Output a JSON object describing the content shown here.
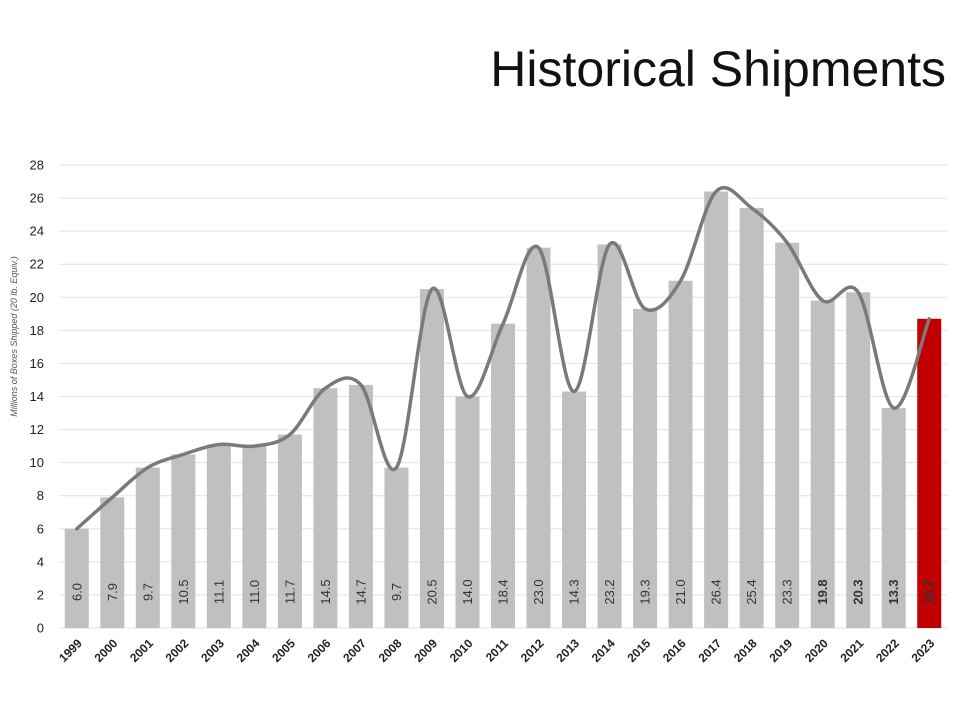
{
  "slide": {
    "title": "Historical Shipments"
  },
  "chart_data": {
    "type": "bar",
    "title": "",
    "xlabel": "",
    "ylabel": "Millions of Boxes Shipped (20 lb. Equiv.)",
    "ylim": [
      0,
      28
    ],
    "yticks": [
      0,
      2,
      4,
      6,
      8,
      10,
      12,
      14,
      16,
      18,
      20,
      22,
      24,
      26,
      28
    ],
    "grid": true,
    "legend": "none",
    "categories": [
      "1999",
      "2000",
      "2001",
      "2002",
      "2003",
      "2004",
      "2005",
      "2006",
      "2007",
      "2008",
      "2009",
      "2010",
      "2011",
      "2012",
      "2013",
      "2014",
      "2015",
      "2016",
      "2017",
      "2018",
      "2019",
      "2020",
      "2021",
      "2022",
      "2023"
    ],
    "series": [
      {
        "values": [
          6.0,
          7.9,
          9.7,
          10.5,
          11.1,
          11.0,
          11.7,
          14.5,
          14.7,
          9.7,
          20.5,
          14.0,
          18.4,
          23.0,
          14.3,
          23.2,
          19.3,
          21.0,
          26.4,
          25.4,
          23.3,
          19.8,
          20.3,
          13.3,
          18.7
        ]
      }
    ],
    "data_labels": [
      "6.0",
      "7.9",
      "9.7",
      "10.5",
      "11.1",
      "11.0",
      "11.7",
      "14.5",
      "14.7",
      "9.7",
      "20.5",
      "14.0",
      "18.4",
      "23.0",
      "14.3",
      "23.2",
      "19.3",
      "21.0",
      "26.4",
      "25.4",
      "23.3",
      "19.8",
      "20.3",
      "13.3",
      "18.7"
    ],
    "trend_line": "smoothed line through bar values",
    "colors": {
      "bar": "#c0c0c0",
      "highlight_bar": "#c00000",
      "line": "#7a7a7a",
      "grid": "#e3e3e3"
    },
    "highlight_category": "2023"
  }
}
